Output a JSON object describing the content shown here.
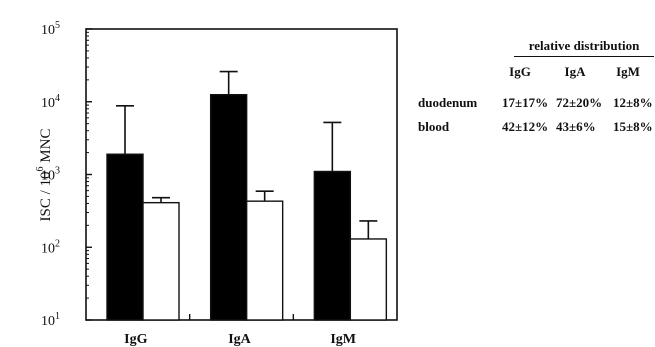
{
  "chart_data": {
    "type": "bar",
    "scale": "log",
    "ylabel": {
      "prefix": "ISC / 10",
      "exponent": "6",
      "suffix": " MNC"
    },
    "ylim": [
      10,
      100000
    ],
    "yticks": [
      {
        "base": "10",
        "exp": "1",
        "value": 10
      },
      {
        "base": "10",
        "exp": "2",
        "value": 100
      },
      {
        "base": "10",
        "exp": "3",
        "value": 1000
      },
      {
        "base": "10",
        "exp": "4",
        "value": 10000
      },
      {
        "base": "10",
        "exp": "5",
        "value": 100000
      }
    ],
    "categories": [
      "IgG",
      "IgA",
      "IgM"
    ],
    "series": [
      {
        "fill": "#000000",
        "values": [
          1900,
          12500,
          1100
        ],
        "error_upper": [
          8800,
          26000,
          5200
        ]
      },
      {
        "fill": "#ffffff",
        "values": [
          410,
          430,
          130
        ],
        "error_upper": [
          480,
          590,
          230
        ]
      }
    ],
    "grid": false
  },
  "table": {
    "title": "relative distribution",
    "headers": [
      "IgG",
      "IgA",
      "IgM"
    ],
    "rows": [
      {
        "label": "duodenum",
        "values": [
          "17±17%",
          "72±20%",
          "12±8%"
        ]
      },
      {
        "label": "blood",
        "values": [
          "42±12%",
          "43±6%",
          "15±8%"
        ]
      }
    ]
  }
}
